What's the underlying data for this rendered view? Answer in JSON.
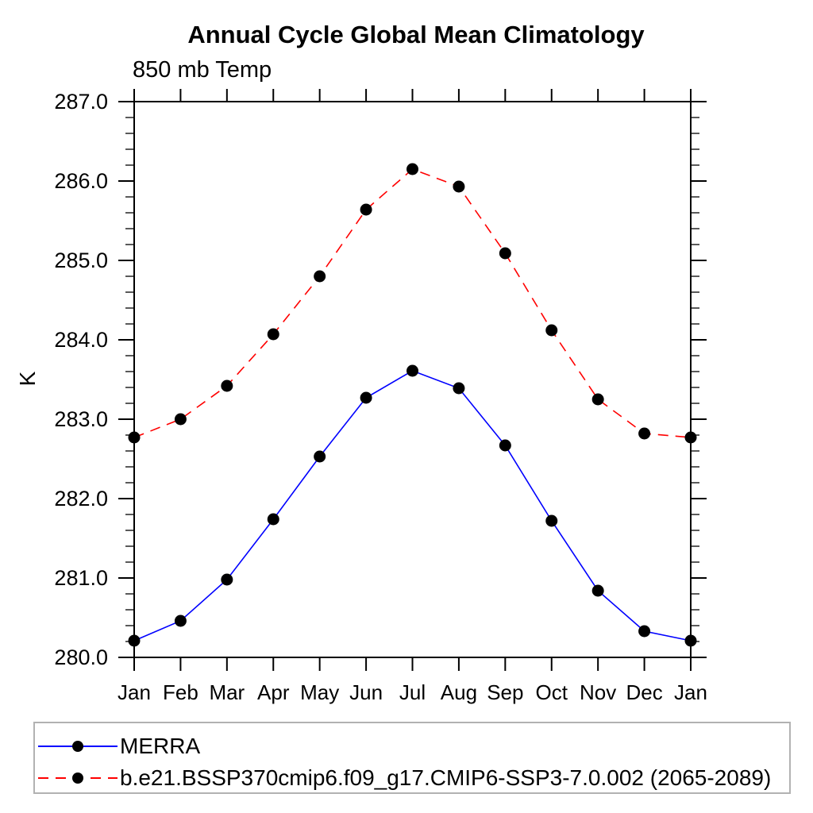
{
  "title": "Annual Cycle Global Mean Climatology",
  "subtitle": "850 mb Temp",
  "y_axis_label": "K",
  "legend": {
    "items": [
      {
        "label": "MERRA",
        "color": "#0000ff",
        "style": "solid"
      },
      {
        "label": "b.e21.BSSP370cmip6.f09_g17.CMIP6-SSP3-7.0.002 (2065-2089)",
        "color": "#ff0000",
        "style": "dashed"
      }
    ]
  },
  "chart_data": {
    "type": "line",
    "title": "Annual Cycle Global Mean Climatology",
    "subtitle": "850 mb Temp",
    "xlabel": "",
    "ylabel": "K",
    "categories": [
      "Jan",
      "Feb",
      "Mar",
      "Apr",
      "May",
      "Jun",
      "Jul",
      "Aug",
      "Sep",
      "Oct",
      "Nov",
      "Dec",
      "Jan"
    ],
    "ylim": [
      280.0,
      287.0
    ],
    "y_major_interval": 1.0,
    "y_minor_interval": 0.2,
    "y_tick_labels": [
      "280.0",
      "281.0",
      "282.0",
      "283.0",
      "284.0",
      "285.0",
      "286.0",
      "287.0"
    ],
    "grid": false,
    "legend_position": "bottom",
    "marker": {
      "shape": "circle",
      "color": "#000000",
      "radius": 7.5
    },
    "axis_color": "#000000",
    "series": [
      {
        "name": "MERRA",
        "color": "#0000ff",
        "line_style": "solid",
        "values": [
          280.21,
          280.46,
          280.98,
          281.74,
          282.53,
          283.27,
          283.61,
          283.39,
          282.67,
          281.72,
          280.84,
          280.33,
          280.21
        ]
      },
      {
        "name": "b.e21.BSSP370cmip6.f09_g17.CMIP6-SSP3-7.0.002 (2065-2089)",
        "color": "#ff0000",
        "line_style": "dashed",
        "values": [
          282.77,
          283.0,
          283.42,
          284.07,
          284.8,
          285.64,
          286.15,
          285.93,
          285.09,
          284.12,
          283.25,
          282.82,
          282.77
        ]
      }
    ]
  }
}
